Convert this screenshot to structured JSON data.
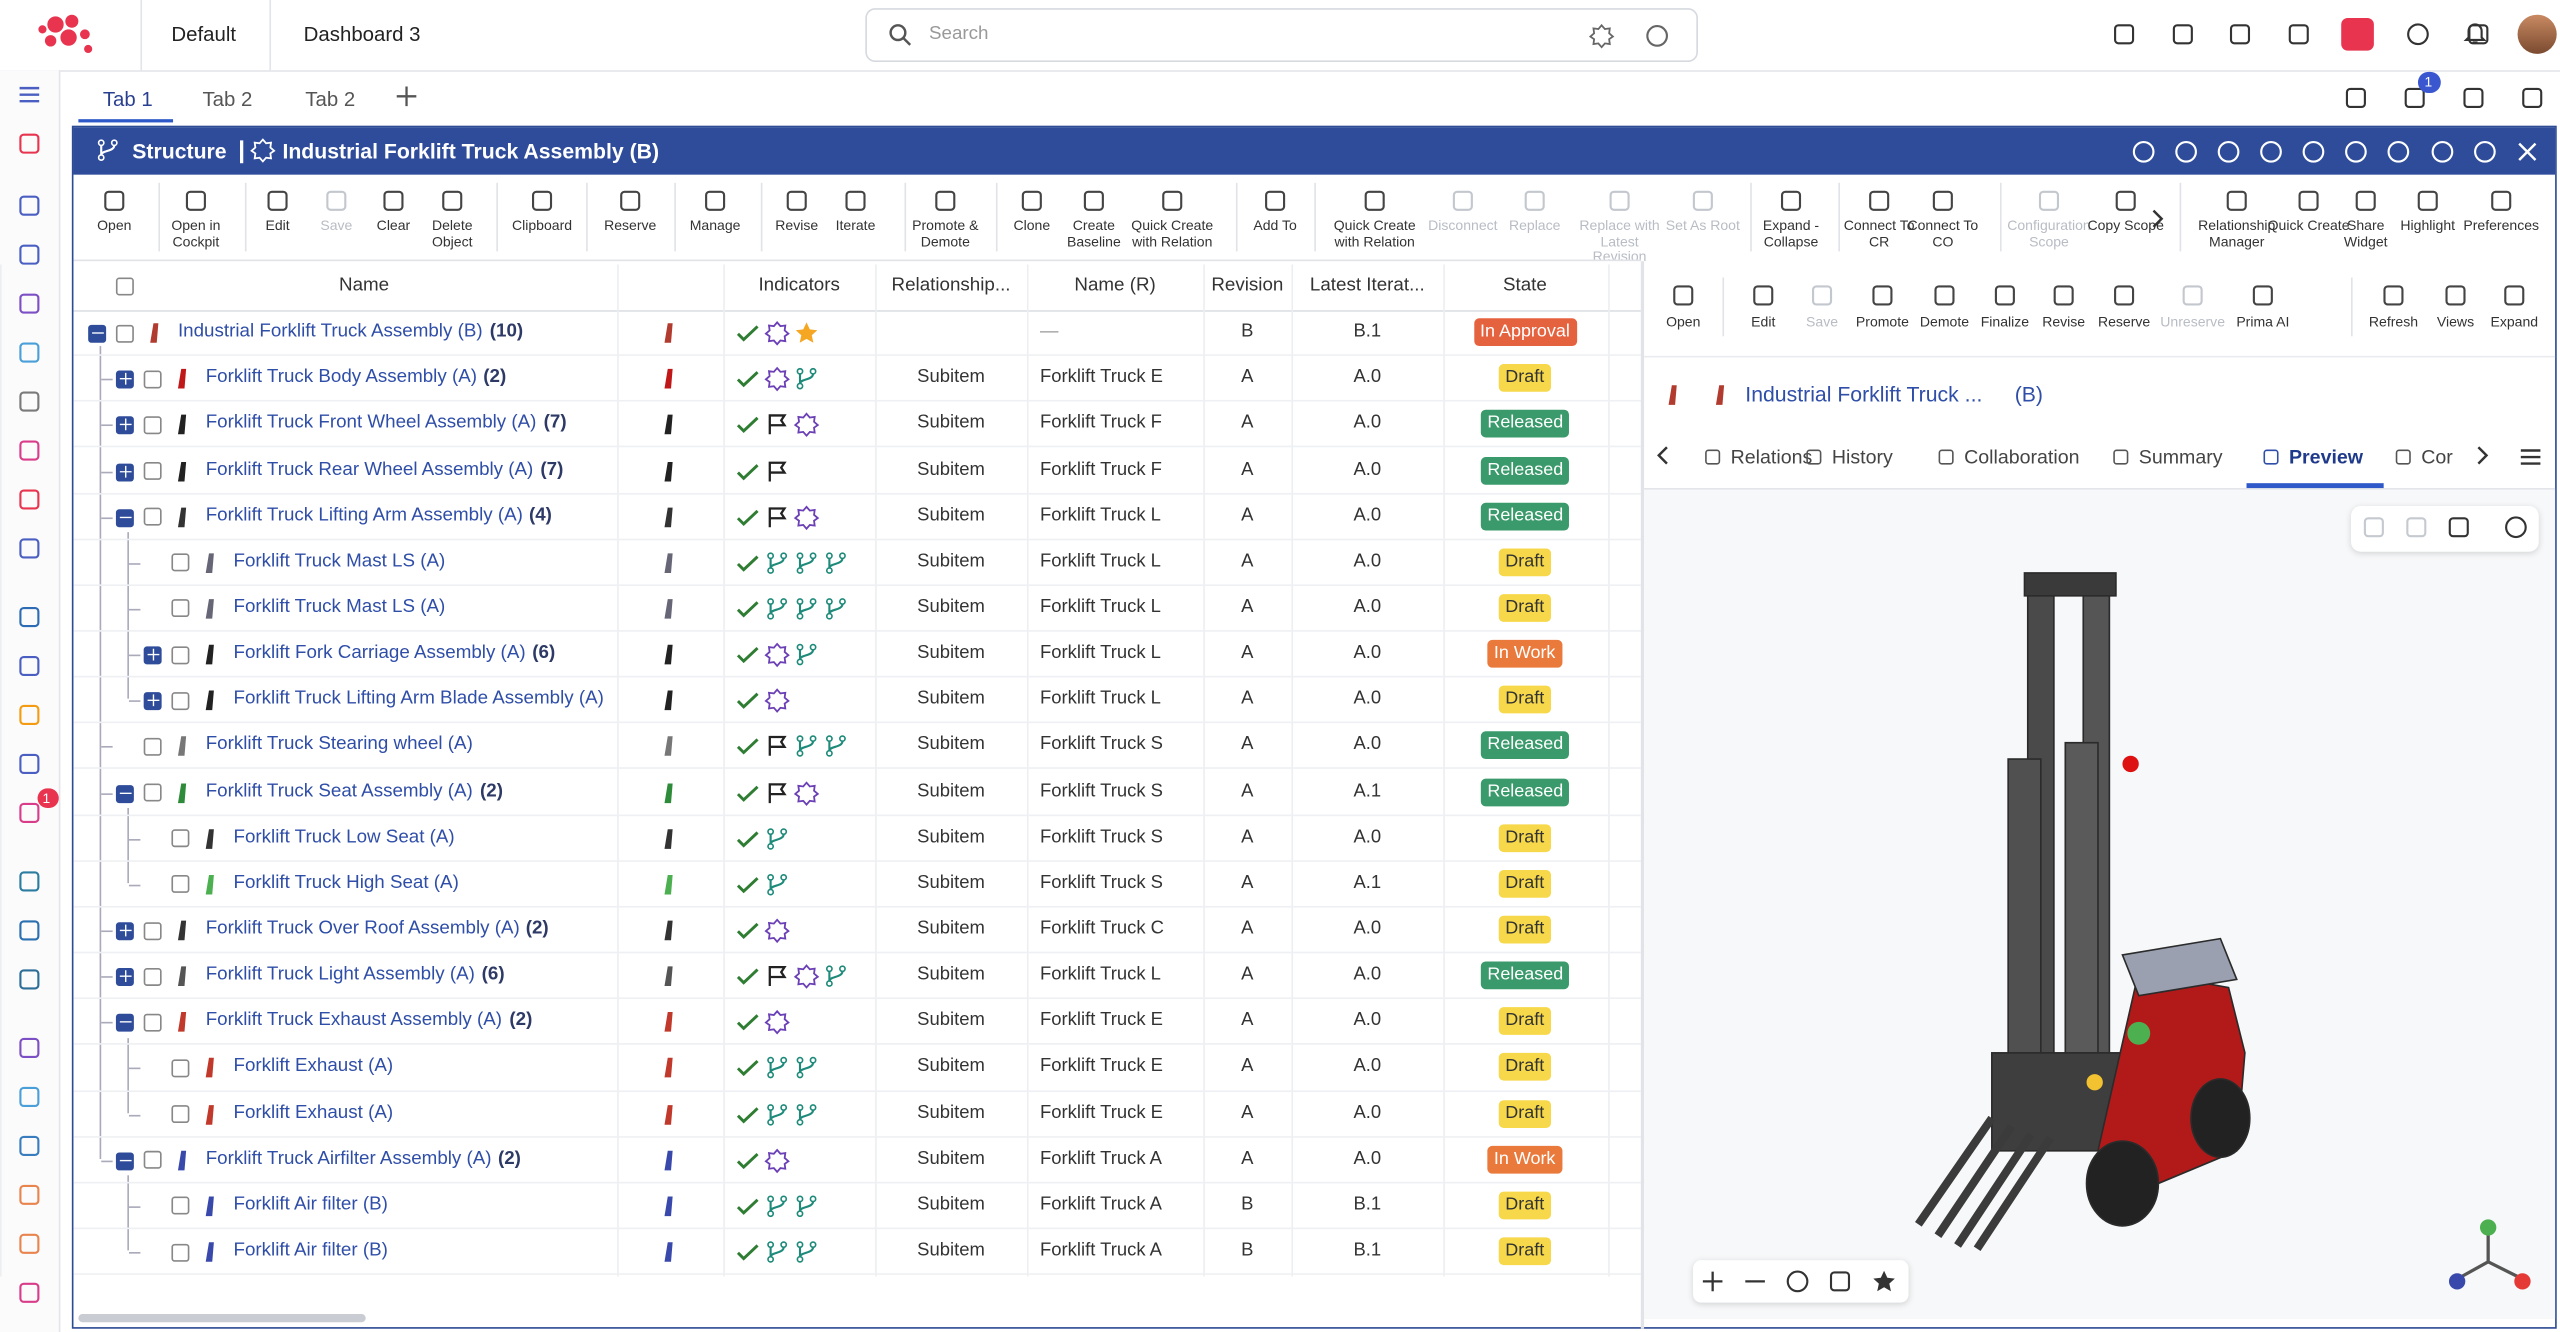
{
  "top_bar": {
    "tabs": [
      "Default",
      "Dashboard 3"
    ],
    "search_placeholder": "Search",
    "notification_badge": 1
  },
  "sidebar": {
    "badge": 1
  },
  "page_tabs": [
    "Tab 1",
    "Tab 2",
    "Tab 2"
  ],
  "widget": {
    "section": "Structure",
    "title": "Industrial Forklift Truck Assembly (B)"
  },
  "toolbar": [
    {
      "label": "Open"
    },
    {
      "label": "Open in Cockpit"
    },
    {
      "label": "Edit"
    },
    {
      "label": "Save",
      "disabled": true
    },
    {
      "label": "Clear"
    },
    {
      "label": "Delete Object"
    },
    {
      "label": "Clipboard"
    },
    {
      "label": "Reserve"
    },
    {
      "label": "Manage"
    },
    {
      "label": "Revise"
    },
    {
      "label": "Iterate"
    },
    {
      "label": "Promote & Demote"
    },
    {
      "label": "Clone"
    },
    {
      "label": "Create Baseline"
    },
    {
      "label": "Quick Create with Relation"
    },
    {
      "label": "Add To"
    },
    {
      "label": "Quick Create with Relation"
    },
    {
      "label": "Disconnect",
      "disabled": true
    },
    {
      "label": "Replace",
      "disabled": true
    },
    {
      "label": "Replace with Latest Revision",
      "disabled": true
    },
    {
      "label": "Set As Root",
      "disabled": true
    },
    {
      "label": "Expand - Collapse"
    },
    {
      "label": "Connect To CR"
    },
    {
      "label": "Connect To CO"
    },
    {
      "label": "Configuration Scope",
      "disabled": true
    },
    {
      "label": "Copy Scope"
    },
    {
      "label": "Relationship Manager"
    },
    {
      "label": "Quick Create"
    },
    {
      "label": "Share Widget"
    },
    {
      "label": "Highlight"
    },
    {
      "label": "Preferences"
    }
  ],
  "table": {
    "columns": [
      "Name",
      "Indicators",
      "Relationship...",
      "Name (R)",
      "Revision",
      "Latest Iterat...",
      "State"
    ],
    "rows": [
      {
        "level": 0,
        "expanded": true,
        "name": "Industrial Forklift Truck Assembly (B)",
        "count": "(10)",
        "name_r": "—",
        "revision": "B",
        "latest": "B.1",
        "state": "In Approval",
        "state_color": "#e5623f"
      },
      {
        "level": 1,
        "expanded": false,
        "name": "Forklift Truck Body Assembly (A)",
        "count": "(2)",
        "relationship": "Subitem",
        "name_r": "Forklift Truck E",
        "revision": "A",
        "latest": "A.0",
        "state": "Draft",
        "state_color": "#f6d84a"
      },
      {
        "level": 1,
        "expanded": false,
        "name": "Forklift Truck Front Wheel Assembly (A)",
        "count": "(7)",
        "relationship": "Subitem",
        "name_r": "Forklift Truck F",
        "revision": "A",
        "latest": "A.0",
        "state": "Released",
        "state_color": "#3b9a6b"
      },
      {
        "level": 1,
        "expanded": false,
        "name": "Forklift Truck Rear Wheel Assembly (A)",
        "count": "(7)",
        "relationship": "Subitem",
        "name_r": "Forklift Truck F",
        "revision": "A",
        "latest": "A.0",
        "state": "Released",
        "state_color": "#3b9a6b"
      },
      {
        "level": 1,
        "expanded": true,
        "name": "Forklift Truck Lifting Arm Assembly (A)",
        "count": "(4)",
        "relationship": "Subitem",
        "name_r": "Forklift Truck L",
        "revision": "A",
        "latest": "A.0",
        "state": "Released",
        "state_color": "#3b9a6b"
      },
      {
        "level": 2,
        "name": "Forklift Truck Mast LS (A)",
        "relationship": "Subitem",
        "name_r": "Forklift Truck L",
        "revision": "A",
        "latest": "A.0",
        "state": "Draft",
        "state_color": "#f6d84a"
      },
      {
        "level": 2,
        "name": "Forklift Truck Mast LS (A)",
        "relationship": "Subitem",
        "name_r": "Forklift Truck L",
        "revision": "A",
        "latest": "A.0",
        "state": "Draft",
        "state_color": "#f6d84a"
      },
      {
        "level": 2,
        "expanded": false,
        "name": "Forklift Fork Carriage Assembly (A)",
        "count": "(6)",
        "relationship": "Subitem",
        "name_r": "Forklift Truck L",
        "revision": "A",
        "latest": "A.0",
        "state": "In Work",
        "state_color": "#ea7a3c"
      },
      {
        "level": 2,
        "expanded": false,
        "name": "Forklift Truck Lifting Arm Blade Assembly (A)",
        "relationship": "Subitem",
        "name_r": "Forklift Truck L",
        "revision": "A",
        "latest": "A.0",
        "state": "Draft",
        "state_color": "#f6d84a"
      },
      {
        "level": 1,
        "name": "Forklift Truck Stearing wheel (A)",
        "relationship": "Subitem",
        "name_r": "Forklift Truck S",
        "revision": "A",
        "latest": "A.0",
        "state": "Released",
        "state_color": "#3b9a6b"
      },
      {
        "level": 1,
        "expanded": true,
        "name": "Forklift Truck Seat Assembly (A)",
        "count": "(2)",
        "relationship": "Subitem",
        "name_r": "Forklift Truck S",
        "revision": "A",
        "latest": "A.1",
        "state": "Released",
        "state_color": "#3b9a6b"
      },
      {
        "level": 2,
        "name": "Forklift Truck Low Seat (A)",
        "relationship": "Subitem",
        "name_r": "Forklift Truck S",
        "revision": "A",
        "latest": "A.0",
        "state": "Draft",
        "state_color": "#f6d84a"
      },
      {
        "level": 2,
        "name": "Forklift Truck High Seat (A)",
        "relationship": "Subitem",
        "name_r": "Forklift Truck S",
        "revision": "A",
        "latest": "A.1",
        "state": "Draft",
        "state_color": "#f6d84a"
      },
      {
        "level": 1,
        "expanded": false,
        "name": "Forklift Truck Over Roof Assembly (A)",
        "count": "(2)",
        "relationship": "Subitem",
        "name_r": "Forklift Truck C",
        "revision": "A",
        "latest": "A.0",
        "state": "Draft",
        "state_color": "#f6d84a"
      },
      {
        "level": 1,
        "expanded": false,
        "name": "Forklift Truck Light Assembly (A)",
        "count": "(6)",
        "relationship": "Subitem",
        "name_r": "Forklift Truck L",
        "revision": "A",
        "latest": "A.0",
        "state": "Released",
        "state_color": "#3b9a6b"
      },
      {
        "level": 1,
        "expanded": true,
        "name": "Forklift Truck Exhaust Assembly (A)",
        "count": "(2)",
        "relationship": "Subitem",
        "name_r": "Forklift Truck E",
        "revision": "A",
        "latest": "A.0",
        "state": "Draft",
        "state_color": "#f6d84a"
      },
      {
        "level": 2,
        "name": "Forklift Exhaust (A)",
        "relationship": "Subitem",
        "name_r": "Forklift Truck E",
        "revision": "A",
        "latest": "A.0",
        "state": "Draft",
        "state_color": "#f6d84a"
      },
      {
        "level": 2,
        "name": "Forklift Exhaust (A)",
        "relationship": "Subitem",
        "name_r": "Forklift Truck E",
        "revision": "A",
        "latest": "A.0",
        "state": "Draft",
        "state_color": "#f6d84a"
      },
      {
        "level": 1,
        "expanded": true,
        "name": "Forklift Truck Airfilter Assembly (A)",
        "count": "(2)",
        "relationship": "Subitem",
        "name_r": "Forklift Truck A",
        "revision": "A",
        "latest": "A.0",
        "state": "In Work",
        "state_color": "#ea7a3c"
      },
      {
        "level": 2,
        "name": "Forklift Air filter (B)",
        "relationship": "Subitem",
        "name_r": "Forklift Truck A",
        "revision": "B",
        "latest": "B.1",
        "state": "Draft",
        "state_color": "#f6d84a"
      },
      {
        "level": 2,
        "name": "Forklift Air filter (B)",
        "relationship": "Subitem",
        "name_r": "Forklift Truck A",
        "revision": "B",
        "latest": "B.1",
        "state": "Draft",
        "state_color": "#f6d84a"
      }
    ]
  },
  "panel": {
    "toolbar": [
      {
        "label": "Open"
      },
      {
        "label": "Edit"
      },
      {
        "label": "Save",
        "disabled": true
      },
      {
        "label": "Promote"
      },
      {
        "label": "Demote"
      },
      {
        "label": "Finalize"
      },
      {
        "label": "Revise"
      },
      {
        "label": "Reserve"
      },
      {
        "label": "Unreserve",
        "disabled": true
      },
      {
        "label": "Prima AI"
      },
      {
        "label": "Refresh"
      },
      {
        "label": "Views"
      },
      {
        "label": "Expand"
      }
    ],
    "object_title": "Industrial Forklift Truck ...",
    "object_revision": "(B)",
    "tabs": [
      "Relations",
      "History",
      "Collaboration",
      "Summary",
      "Preview",
      "Cor"
    ],
    "active_tab": 4
  }
}
